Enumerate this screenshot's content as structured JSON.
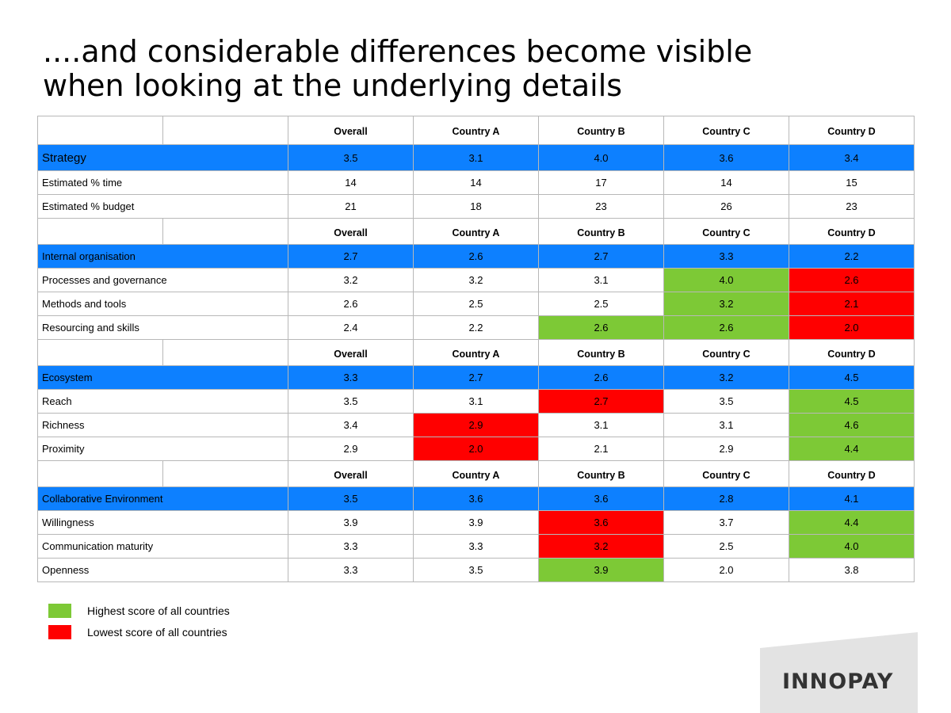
{
  "title": {
    "line1": "....and considerable differences become visible",
    "line2": "when looking at the underlying details"
  },
  "columns": [
    "Overall",
    "Country A",
    "Country B",
    "Country C",
    "Country D"
  ],
  "colors": {
    "section": "#0d80ff",
    "highest": "#7dc936",
    "lowest": "#ff0000"
  },
  "table": {
    "strategy": {
      "label": "Strategy",
      "values": [
        "3.5",
        "3.1",
        "4.0",
        "3.6",
        "3.4"
      ],
      "rows": [
        {
          "label": "Estimated % time",
          "values": [
            "14",
            "14",
            "17",
            "14",
            "15"
          ]
        },
        {
          "label": "Estimated % budget",
          "values": [
            "21",
            "18",
            "23",
            "26",
            "23"
          ]
        }
      ]
    },
    "internal": {
      "label": "Internal organisation",
      "values": [
        "2.7",
        "2.6",
        "2.7",
        "3.3",
        "2.2"
      ],
      "rows": [
        {
          "label": "Processes and governance",
          "values": [
            "3.2",
            "3.2",
            "3.1",
            "4.0",
            "2.6"
          ]
        },
        {
          "label": "Methods and tools",
          "values": [
            "2.6",
            "2.5",
            "2.5",
            "3.2",
            "2.1"
          ]
        },
        {
          "label": "Resourcing and skills",
          "values": [
            "2.4",
            "2.2",
            "2.6",
            "2.6",
            "2.0"
          ]
        }
      ]
    },
    "ecosystem": {
      "label": "Ecosystem",
      "values": [
        "3.3",
        "2.7",
        "2.6",
        "3.2",
        "4.5"
      ],
      "rows": [
        {
          "label": "Reach",
          "values": [
            "3.5",
            "3.1",
            "2.7",
            "3.5",
            "4.5"
          ]
        },
        {
          "label": "Richness",
          "values": [
            "3.4",
            "2.9",
            "3.1",
            "3.1",
            "4.6"
          ]
        },
        {
          "label": "Proximity",
          "values": [
            "2.9",
            "2.0",
            "2.1",
            "2.9",
            "4.4"
          ]
        }
      ]
    },
    "collab": {
      "label": "Collaborative Environment",
      "values": [
        "3.5",
        "3.6",
        "3.6",
        "2.8",
        "4.1"
      ],
      "rows": [
        {
          "label": "Willingness",
          "values": [
            "3.9",
            "3.9",
            "3.6",
            "3.7",
            "4.4"
          ]
        },
        {
          "label": "Communication maturity",
          "values": [
            "3.3",
            "3.3",
            "3.2",
            "2.5",
            "4.0"
          ]
        },
        {
          "label": "Openness",
          "values": [
            "3.3",
            "3.5",
            "3.9",
            "2.0",
            "3.8"
          ]
        }
      ]
    }
  },
  "legend": {
    "highest": "Highest score of all countries",
    "lowest": "Lowest score of all countries"
  },
  "logo": {
    "text": "INNOPAY"
  }
}
